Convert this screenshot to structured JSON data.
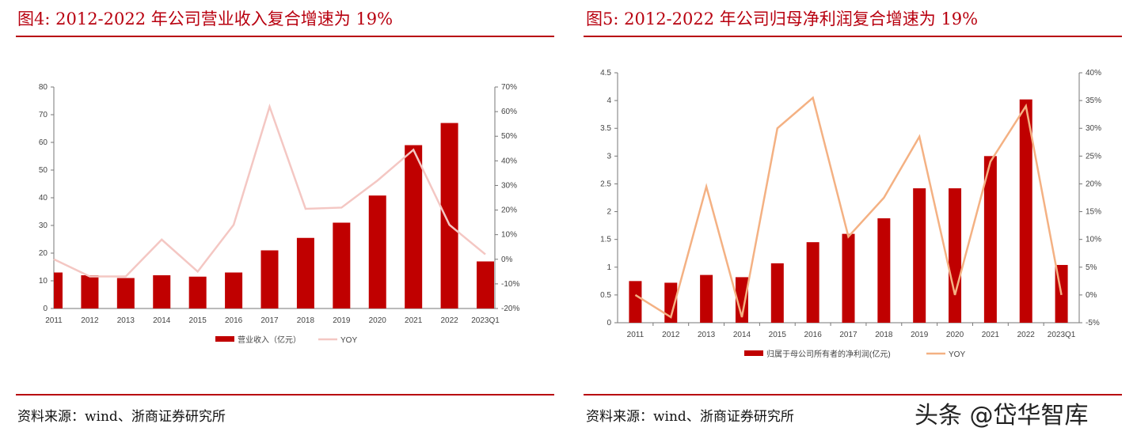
{
  "left": {
    "title": "图4:  2012-2022 年公司营业收入复合增速为 19%",
    "source": "资料来源：wind、浙商证券研究所"
  },
  "right": {
    "title": "图5:  2012-2022 年公司归母净利润复合增速为 19%",
    "source": "资料来源：wind、浙商证券研究所"
  },
  "watermark": "头条 @岱华智库",
  "chart_data": [
    {
      "type": "bar+line",
      "categories": [
        "2011",
        "2012",
        "2013",
        "2014",
        "2015",
        "2016",
        "2017",
        "2018",
        "2019",
        "2020",
        "2021",
        "2022",
        "2023Q1"
      ],
      "series": [
        {
          "name": "营业收入（亿元）",
          "type": "bar",
          "axis": "left",
          "color": "#c00000",
          "values": [
            13,
            12,
            11,
            12,
            11.5,
            13,
            21,
            25.5,
            31,
            40.8,
            59,
            67,
            17
          ]
        },
        {
          "name": "YOY",
          "type": "line",
          "axis": "right",
          "color": "#f4c7c3",
          "values": [
            0,
            -7,
            -7,
            8,
            -5,
            14,
            62,
            20.5,
            21,
            32,
            44.5,
            14,
            2
          ]
        }
      ],
      "ylim": [
        0,
        80
      ],
      "yticks": [
        "0",
        "10",
        "20",
        "30",
        "40",
        "50",
        "60",
        "70",
        "80"
      ],
      "y2lim": [
        -20,
        70
      ],
      "y2ticks": [
        "-20%",
        "-10%",
        "0%",
        "10%",
        "20%",
        "30%",
        "40%",
        "50%",
        "60%",
        "70%"
      ],
      "legend": "bottom"
    },
    {
      "type": "bar+line",
      "categories": [
        "2011",
        "2012",
        "2013",
        "2014",
        "2015",
        "2016",
        "2017",
        "2018",
        "2019",
        "2020",
        "2021",
        "2022",
        "2023Q1"
      ],
      "series": [
        {
          "name": "归属于母公司所有者的净利润(亿元)",
          "type": "bar",
          "axis": "left",
          "color": "#c00000",
          "values": [
            0.75,
            0.72,
            0.86,
            0.82,
            1.07,
            1.45,
            1.6,
            1.88,
            2.42,
            2.42,
            3.0,
            4.02,
            1.04
          ]
        },
        {
          "name": "YOY",
          "type": "line",
          "axis": "right",
          "color": "#f4b183",
          "values": [
            0,
            -4,
            19.5,
            -4,
            30,
            35.5,
            10.5,
            17.5,
            28.5,
            0,
            24,
            34,
            0
          ]
        }
      ],
      "ylim": [
        0,
        4.5
      ],
      "yticks": [
        "0",
        "0.5",
        "1",
        "1.5",
        "2",
        "2.5",
        "3",
        "3.5",
        "4",
        "4.5"
      ],
      "y2lim": [
        -5,
        40
      ],
      "y2ticks": [
        "-5%",
        "0%",
        "5%",
        "10%",
        "15%",
        "20%",
        "25%",
        "30%",
        "35%",
        "40%"
      ],
      "legend": "bottom"
    }
  ]
}
